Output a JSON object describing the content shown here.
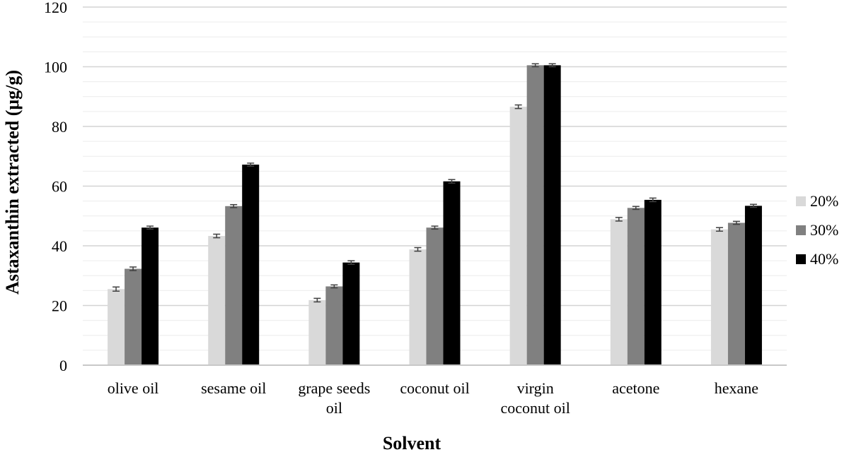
{
  "chart_data": {
    "type": "bar",
    "title": "",
    "xlabel": "Solvent",
    "ylabel": "Astaxanthin extracted (μg/g)",
    "ylim": [
      0,
      120
    ],
    "yticks": [
      0,
      20,
      40,
      60,
      80,
      100,
      120
    ],
    "grid": true,
    "legend_position": "right",
    "categories": [
      [
        "olive oil"
      ],
      [
        "sesame oil"
      ],
      [
        "grape seeds",
        "oil"
      ],
      [
        "coconut oil"
      ],
      [
        "virgin",
        "coconut oil"
      ],
      [
        "acetone"
      ],
      [
        "hexane"
      ]
    ],
    "series": [
      {
        "name": "20%",
        "color": "#d9d9d9",
        "values": [
          25.5,
          43.3,
          21.8,
          38.8,
          86.6,
          48.9,
          45.5
        ],
        "errors": [
          0.7,
          0.6,
          0.6,
          0.6,
          0.6,
          0.6,
          0.6
        ]
      },
      {
        "name": "30%",
        "color": "#808080",
        "values": [
          32.3,
          53.3,
          26.4,
          46.1,
          100.5,
          52.7,
          47.7
        ],
        "errors": [
          0.6,
          0.5,
          0.5,
          0.5,
          0.5,
          0.5,
          0.5
        ]
      },
      {
        "name": "40%",
        "color": "#000000",
        "values": [
          46.1,
          67.2,
          34.4,
          61.6,
          100.5,
          55.4,
          53.4
        ],
        "errors": [
          0.5,
          0.5,
          0.6,
          0.6,
          0.5,
          0.6,
          0.5
        ]
      }
    ]
  }
}
